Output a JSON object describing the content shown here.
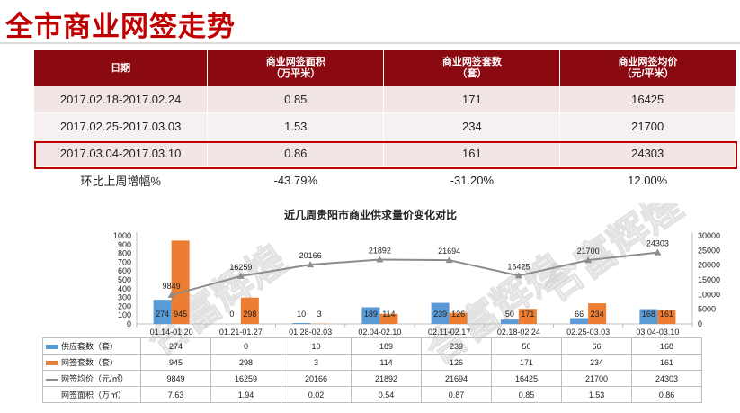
{
  "page": {
    "title": "全市商业网签走势"
  },
  "summary": {
    "headers": {
      "date": "日期",
      "area": "商业网签面积",
      "area_unit": "（万平米）",
      "sets": "商业网签套数",
      "sets_unit": "（套）",
      "price": "商业网签均价",
      "price_unit": "（元/平米）"
    },
    "rows": [
      {
        "date": "2017.02.18-2017.02.24",
        "area": "0.85",
        "sets": "171",
        "price": "16425"
      },
      {
        "date": "2017.02.25-2017.03.03",
        "area": "1.53",
        "sets": "234",
        "price": "21700"
      },
      {
        "date": "2017.03.04-2017.03.10",
        "area": "0.86",
        "sets": "161",
        "price": "24303"
      }
    ],
    "change": {
      "label": "环比上周增幅%",
      "area": "-43.79%",
      "sets": "-31.20%",
      "price": "12.00%"
    }
  },
  "chart_data": {
    "type": "bar",
    "title": "近几周贵阳市商业供求量价变化对比",
    "categories": [
      "01.14-01.20",
      "01.21-01.27",
      "01.28-02.03",
      "02.04-02.10",
      "02.11-02.17",
      "02.18-02.24",
      "02.25-03.03",
      "03.04-03.10"
    ],
    "series": [
      {
        "name": "供应套数（套）",
        "kind": "bar",
        "axis": "left",
        "color": "#5b9bd5",
        "values": [
          274,
          0,
          10,
          189,
          239,
          50,
          66,
          168
        ]
      },
      {
        "name": "网签套数（套）",
        "kind": "bar",
        "axis": "left",
        "color": "#ed7d31",
        "values": [
          945,
          298,
          3,
          114,
          126,
          171,
          234,
          161
        ]
      },
      {
        "name": "网签均价（元/㎡）",
        "kind": "line",
        "axis": "right",
        "color": "#8c8c8c",
        "values": [
          9849,
          16259,
          20166,
          21892,
          21694,
          16425,
          21700,
          24303
        ]
      },
      {
        "name": "网签面积（万㎡）",
        "kind": "table",
        "values": [
          "7.63",
          "1.94",
          "0.02",
          "0.54",
          "0.87",
          "0.85",
          "1.53",
          "0.86"
        ]
      }
    ],
    "left_axis": {
      "min": 0,
      "max": 1000,
      "ticks": [
        0,
        100,
        200,
        300,
        400,
        500,
        600,
        700,
        800,
        900,
        1000
      ]
    },
    "right_axis": {
      "min": 0,
      "max": 30000,
      "ticks": [
        0,
        5000,
        10000,
        15000,
        20000,
        25000,
        30000
      ]
    },
    "grid": false,
    "legend": "data-table-below"
  },
  "watermark": {
    "text": "合富辉煌"
  }
}
